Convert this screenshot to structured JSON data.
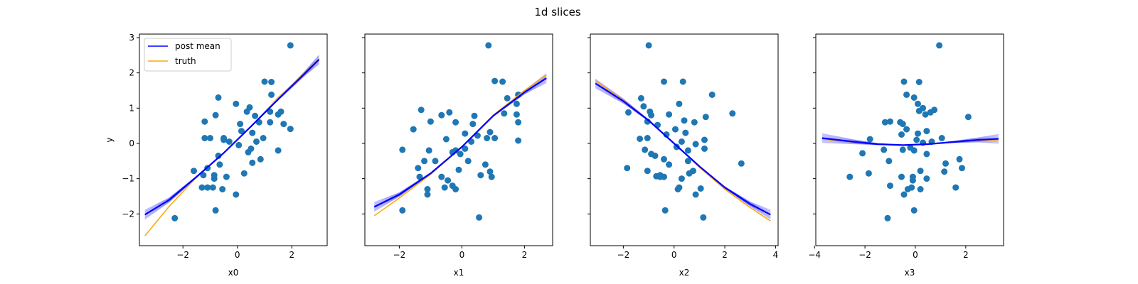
{
  "figure": {
    "title": "1d slices"
  },
  "colors": {
    "points": "#1f77b4",
    "post_mean": "#0000ff",
    "truth": "#ffa500",
    "axes": "#000000",
    "legend_border": "#cccccc"
  },
  "legend": {
    "placement": "top-left",
    "entries": [
      {
        "label": "post mean",
        "color": "#0000ff"
      },
      {
        "label": "truth",
        "color": "#ffa500"
      }
    ]
  },
  "chart_data": [
    {
      "type": "scatter+line",
      "xlabel": "x0",
      "ylabel": "y",
      "xlim": [
        -3.6,
        3.3
      ],
      "ylim": [
        -2.9,
        3.1
      ],
      "xticks": [
        -2,
        0,
        2
      ],
      "yticks": [
        -2,
        -1,
        0,
        1,
        2,
        3
      ],
      "points": [
        [
          1.95,
          2.78
        ],
        [
          -2.3,
          -2.12
        ],
        [
          -0.8,
          -1.9
        ],
        [
          -1.1,
          -1.25
        ],
        [
          -1.3,
          -1.25
        ],
        [
          -0.9,
          -1.25
        ],
        [
          -0.55,
          -1.3
        ],
        [
          -0.05,
          -1.45
        ],
        [
          -1.1,
          -0.7
        ],
        [
          -0.85,
          -1.0
        ],
        [
          -1.6,
          -0.78
        ],
        [
          -1.25,
          -0.9
        ],
        [
          -0.85,
          -0.9
        ],
        [
          -0.4,
          -0.95
        ],
        [
          0.25,
          -0.85
        ],
        [
          -0.65,
          -0.6
        ],
        [
          -0.7,
          -0.35
        ],
        [
          0.4,
          -0.25
        ],
        [
          0.85,
          -0.45
        ],
        [
          0.55,
          -0.55
        ],
        [
          -0.3,
          0.05
        ],
        [
          0.05,
          -0.05
        ],
        [
          -0.5,
          0.15
        ],
        [
          -1.0,
          0.15
        ],
        [
          -1.2,
          0.15
        ],
        [
          -0.5,
          0.1
        ],
        [
          0.7,
          0.05
        ],
        [
          0.95,
          0.15
        ],
        [
          0.5,
          -0.15
        ],
        [
          0.15,
          0.35
        ],
        [
          0.55,
          0.3
        ],
        [
          0.1,
          0.55
        ],
        [
          -0.8,
          0.8
        ],
        [
          -1.2,
          0.62
        ],
        [
          0.8,
          0.6
        ],
        [
          0.45,
          1.02
        ],
        [
          -0.7,
          1.3
        ],
        [
          -0.05,
          1.12
        ],
        [
          0.35,
          0.9
        ],
        [
          0.65,
          0.78
        ],
        [
          1.2,
          0.6
        ],
        [
          1.2,
          0.9
        ],
        [
          1.5,
          0.82
        ],
        [
          1.6,
          0.9
        ],
        [
          1.0,
          1.75
        ],
        [
          1.25,
          1.74
        ],
        [
          1.25,
          1.38
        ],
        [
          1.7,
          0.55
        ],
        [
          1.95,
          0.41
        ],
        [
          1.5,
          -0.2
        ]
      ],
      "post_mean": {
        "x": [
          -3.4,
          -2.5,
          -1.5,
          -0.5,
          0.5,
          1.5,
          2.5,
          3.0
        ],
        "y": [
          -2.02,
          -1.6,
          -0.95,
          -0.27,
          0.48,
          1.25,
          2.0,
          2.38
        ]
      },
      "truth": {
        "x": [
          -3.4,
          -2.5,
          -1.5,
          -0.5,
          0.5,
          1.5,
          2.5,
          3.0
        ],
        "y": [
          -2.62,
          -1.78,
          -0.96,
          -0.27,
          0.48,
          1.3,
          2.02,
          2.4
        ]
      }
    },
    {
      "type": "scatter+line",
      "xlabel": "x1",
      "ylabel": "",
      "xlim": [
        -3.1,
        2.9
      ],
      "ylim": [
        -2.9,
        3.1
      ],
      "xticks": [
        -2,
        0,
        2
      ],
      "yticks": [
        -2,
        -1,
        0,
        1,
        2,
        3
      ],
      "points": [
        [
          0.85,
          2.78
        ],
        [
          -1.9,
          -1.9
        ],
        [
          0.55,
          -2.1
        ],
        [
          -1.1,
          -1.3
        ],
        [
          -1.1,
          -1.45
        ],
        [
          -0.55,
          -1.25
        ],
        [
          -0.2,
          -1.3
        ],
        [
          -0.3,
          -1.2
        ],
        [
          -1.35,
          -0.95
        ],
        [
          -0.65,
          -0.95
        ],
        [
          -0.45,
          -1.05
        ],
        [
          0.6,
          -0.9
        ],
        [
          0.75,
          -0.6
        ],
        [
          0.9,
          -0.8
        ],
        [
          0.95,
          -0.95
        ],
        [
          -0.1,
          -0.75
        ],
        [
          -1.4,
          -0.7
        ],
        [
          -1.2,
          -0.5
        ],
        [
          -0.85,
          -0.5
        ],
        [
          0.2,
          -0.5
        ],
        [
          -0.3,
          -0.25
        ],
        [
          -0.2,
          -0.2
        ],
        [
          -0.05,
          -0.3
        ],
        [
          0.1,
          -0.15
        ],
        [
          -1.9,
          -0.18
        ],
        [
          -1.05,
          -0.2
        ],
        [
          0.3,
          0.05
        ],
        [
          -0.5,
          0.12
        ],
        [
          0.1,
          0.28
        ],
        [
          0.35,
          0.55
        ],
        [
          0.4,
          0.78
        ],
        [
          0.5,
          0.22
        ],
        [
          -0.2,
          0.6
        ],
        [
          -1.55,
          0.4
        ],
        [
          -0.65,
          0.8
        ],
        [
          -0.4,
          0.88
        ],
        [
          -1.3,
          0.95
        ],
        [
          -1.0,
          0.62
        ],
        [
          0.8,
          0.15
        ],
        [
          1.05,
          0.15
        ],
        [
          0.9,
          0.32
        ],
        [
          1.35,
          0.85
        ],
        [
          1.45,
          1.28
        ],
        [
          1.3,
          1.75
        ],
        [
          1.05,
          1.77
        ],
        [
          1.8,
          1.38
        ],
        [
          1.75,
          1.12
        ],
        [
          1.75,
          0.82
        ],
        [
          1.8,
          0.6
        ],
        [
          1.8,
          0.08
        ]
      ],
      "post_mean": {
        "x": [
          -2.8,
          -2.0,
          -1.0,
          0.0,
          1.0,
          2.0,
          2.7
        ],
        "y": [
          -1.8,
          -1.45,
          -0.85,
          -0.1,
          0.78,
          1.45,
          1.85
        ]
      },
      "truth": {
        "x": [
          -2.8,
          -2.0,
          -1.0,
          0.0,
          1.0,
          2.0,
          2.7
        ],
        "y": [
          -2.05,
          -1.55,
          -0.88,
          -0.1,
          0.8,
          1.5,
          1.93
        ]
      }
    },
    {
      "type": "scatter+line",
      "xlabel": "x2",
      "ylabel": "",
      "xlim": [
        -3.3,
        4.1
      ],
      "ylim": [
        -2.9,
        3.1
      ],
      "xticks": [
        -2,
        0,
        2,
        4
      ],
      "yticks": [
        -2,
        -1,
        0,
        1,
        2,
        3
      ],
      "points": [
        [
          -1.0,
          2.78
        ],
        [
          -0.35,
          -1.9
        ],
        [
          1.15,
          -2.1
        ],
        [
          -1.85,
          -0.7
        ],
        [
          -1.05,
          -0.78
        ],
        [
          -0.7,
          -0.93
        ],
        [
          -0.55,
          -0.95
        ],
        [
          -0.4,
          -0.95
        ],
        [
          0.2,
          -1.25
        ],
        [
          0.15,
          -1.3
        ],
        [
          0.3,
          -1.0
        ],
        [
          0.6,
          -0.85
        ],
        [
          0.75,
          -0.78
        ],
        [
          0.85,
          -1.45
        ],
        [
          1.05,
          -1.28
        ],
        [
          -0.2,
          -0.6
        ],
        [
          0.55,
          -0.5
        ],
        [
          -0.9,
          -0.3
        ],
        [
          -0.75,
          -0.35
        ],
        [
          -0.4,
          -0.45
        ],
        [
          0.1,
          -0.1
        ],
        [
          0.3,
          0.05
        ],
        [
          0.55,
          -0.2
        ],
        [
          0.85,
          -0.02
        ],
        [
          1.2,
          -0.15
        ],
        [
          1.2,
          0.1
        ],
        [
          -1.15,
          -0.18
        ],
        [
          -1.35,
          0.13
        ],
        [
          -1.05,
          0.15
        ],
        [
          -0.65,
          0.52
        ],
        [
          -0.3,
          0.25
        ],
        [
          0.05,
          0.4
        ],
        [
          0.45,
          0.3
        ],
        [
          0.4,
          0.65
        ],
        [
          0.8,
          0.6
        ],
        [
          -1.05,
          0.62
        ],
        [
          -0.9,
          0.8
        ],
        [
          -0.2,
          0.82
        ],
        [
          0.2,
          1.12
        ],
        [
          -1.2,
          1.05
        ],
        [
          -1.3,
          1.28
        ],
        [
          -0.4,
          1.75
        ],
        [
          0.35,
          1.75
        ],
        [
          1.5,
          1.38
        ],
        [
          1.25,
          0.75
        ],
        [
          2.3,
          0.85
        ],
        [
          2.65,
          -0.57
        ],
        [
          -1.8,
          0.88
        ],
        [
          -0.95,
          0.9
        ],
        [
          -0.55,
          -0.9
        ]
      ],
      "post_mean": {
        "x": [
          -3.1,
          -2.0,
          -1.0,
          0.0,
          1.0,
          2.0,
          3.0,
          3.8
        ],
        "y": [
          1.7,
          1.2,
          0.65,
          0.0,
          -0.65,
          -1.25,
          -1.72,
          -2.02
        ]
      },
      "truth": {
        "x": [
          -3.1,
          -2.0,
          -1.0,
          0.0,
          1.0,
          2.0,
          3.0,
          3.8
        ],
        "y": [
          1.78,
          1.22,
          0.66,
          0.0,
          -0.68,
          -1.3,
          -1.82,
          -2.2
        ]
      }
    },
    {
      "type": "scatter+line",
      "xlabel": "x3",
      "ylabel": "",
      "xlim": [
        -3.95,
        3.5
      ],
      "ylim": [
        -2.9,
        3.1
      ],
      "xticks": [
        -4,
        -2,
        0,
        2
      ],
      "yticks": [
        -2,
        -1,
        0,
        1,
        2,
        3
      ],
      "points": [
        [
          0.95,
          2.78
        ],
        [
          -1.1,
          -2.12
        ],
        [
          -0.05,
          -1.9
        ],
        [
          -1.0,
          -1.2
        ],
        [
          -0.3,
          -1.3
        ],
        [
          0.2,
          -1.3
        ],
        [
          -0.45,
          -1.45
        ],
        [
          -0.15,
          -1.25
        ],
        [
          1.6,
          -1.25
        ],
        [
          -2.6,
          -0.95
        ],
        [
          -1.85,
          -0.85
        ],
        [
          -0.55,
          -0.95
        ],
        [
          -0.1,
          -0.95
        ],
        [
          -0.1,
          -1.05
        ],
        [
          0.2,
          -0.78
        ],
        [
          0.45,
          -1.0
        ],
        [
          1.15,
          -0.8
        ],
        [
          1.2,
          -0.57
        ],
        [
          1.85,
          -0.7
        ],
        [
          1.75,
          -0.45
        ],
        [
          -1.05,
          -0.5
        ],
        [
          -2.1,
          -0.28
        ],
        [
          -0.05,
          -0.2
        ],
        [
          0.45,
          -0.3
        ],
        [
          -1.25,
          -0.18
        ],
        [
          -1.8,
          0.12
        ],
        [
          -0.5,
          -0.18
        ],
        [
          -0.2,
          -0.12
        ],
        [
          0.05,
          0.1
        ],
        [
          0.3,
          0.02
        ],
        [
          0.45,
          0.35
        ],
        [
          0.65,
          0.05
        ],
        [
          1.05,
          0.15
        ],
        [
          0.1,
          0.28
        ],
        [
          -0.55,
          0.25
        ],
        [
          -1.0,
          0.62
        ],
        [
          -1.2,
          0.6
        ],
        [
          -0.6,
          0.6
        ],
        [
          -0.5,
          0.55
        ],
        [
          -0.35,
          0.4
        ],
        [
          0.15,
          0.92
        ],
        [
          0.4,
          0.82
        ],
        [
          0.6,
          0.88
        ],
        [
          0.75,
          0.95
        ],
        [
          0.1,
          1.12
        ],
        [
          0.3,
          1.0
        ],
        [
          -0.05,
          1.3
        ],
        [
          -0.35,
          1.38
        ],
        [
          -0.45,
          1.75
        ],
        [
          0.15,
          1.74
        ],
        [
          2.1,
          0.75
        ]
      ],
      "post_mean": {
        "x": [
          -3.7,
          -2.5,
          -1.5,
          -0.5,
          0.5,
          1.5,
          2.5,
          3.3
        ],
        "y": [
          0.15,
          0.05,
          -0.02,
          -0.05,
          -0.02,
          0.04,
          0.1,
          0.13
        ]
      },
      "truth": {
        "x": [
          -3.7,
          -2.5,
          -1.5,
          -0.5,
          0.5,
          1.5,
          2.5,
          3.3
        ],
        "y": [
          0.12,
          0.04,
          -0.02,
          -0.05,
          -0.02,
          0.04,
          0.08,
          0.1
        ]
      }
    }
  ]
}
